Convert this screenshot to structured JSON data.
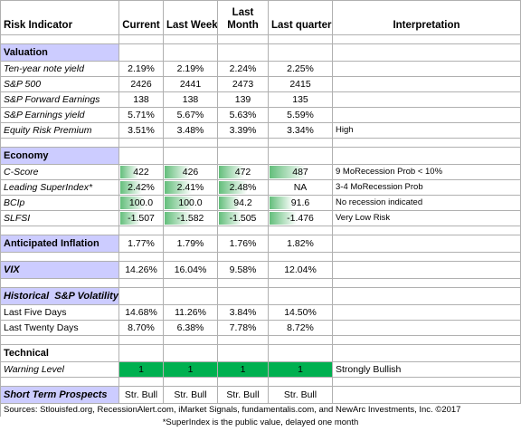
{
  "headers": {
    "indicator": "Risk Indicator",
    "current": "Current",
    "last_week": "Last Week",
    "last_month": "Last Month",
    "last_quarter": "Last quarter",
    "interpretation": "Interpretation"
  },
  "valuation": {
    "title": "Valuation",
    "rows": [
      {
        "label": "Ten-year note yield",
        "current": "2.19%",
        "last_week": "2.19%",
        "last_month": "2.24%",
        "last_quarter": "2.25%",
        "interp": ""
      },
      {
        "label": "S&P 500",
        "current": "2426",
        "last_week": "2441",
        "last_month": "2473",
        "last_quarter": "2415",
        "interp": ""
      },
      {
        "label": "S&P Forward Earnings",
        "current": "138",
        "last_week": "138",
        "last_month": "139",
        "last_quarter": "135",
        "interp": ""
      },
      {
        "label": "S&P Earnings yield",
        "current": "5.71%",
        "last_week": "5.67%",
        "last_month": "5.63%",
        "last_quarter": "5.59%",
        "interp": ""
      },
      {
        "label": "Equity Risk Premium",
        "current": "3.51%",
        "last_week": "3.48%",
        "last_month": "3.39%",
        "last_quarter": "3.34%",
        "interp": "High"
      }
    ]
  },
  "economy": {
    "title": "Economy",
    "rows": [
      {
        "label": "C-Score",
        "current": "422",
        "last_week": "426",
        "last_month": "472",
        "last_quarter": "487",
        "interp": "9 MoRecession Prob < 10%",
        "levels": [
          0.45,
          0.5,
          0.55,
          0.6
        ]
      },
      {
        "label": "Leading SuperIndex*",
        "current": "2.42%",
        "last_week": "2.41%",
        "last_month": "2.48%",
        "last_quarter": "NA",
        "interp": "3-4 MoRecession Prob",
        "levels": [
          0.55,
          0.55,
          0.6,
          0
        ]
      },
      {
        "label": "BCIp",
        "current": "100.0",
        "last_week": "100.0",
        "last_month": "94.2",
        "last_quarter": "91.6",
        "interp": "No recession indicated",
        "levels": [
          0.6,
          0.6,
          0.45,
          0.4
        ]
      },
      {
        "label": "SLFSI",
        "current": "-1.507",
        "last_week": "-1.582",
        "last_month": "-1.505",
        "last_quarter": "-1.476",
        "interp": "Very Low Risk",
        "levels": [
          0.5,
          0.55,
          0.5,
          0.45
        ]
      }
    ]
  },
  "inflation": {
    "label": "Anticipated Inflation",
    "current": "1.77%",
    "last_week": "1.79%",
    "last_month": "1.76%",
    "last_quarter": "1.82%",
    "interp": ""
  },
  "vix": {
    "label": "VIX",
    "current": "14.26%",
    "last_week": "16.04%",
    "last_month": "9.58%",
    "last_quarter": "12.04%",
    "interp": ""
  },
  "volatility": {
    "title": "Historical  S&P Volatility",
    "rows": [
      {
        "label": "Last Five Days",
        "current": "14.68%",
        "last_week": "11.26%",
        "last_month": "3.84%",
        "last_quarter": "14.50%",
        "interp": ""
      },
      {
        "label": "Last Twenty Days",
        "current": "8.70%",
        "last_week": "6.38%",
        "last_month": "7.78%",
        "last_quarter": "8.72%",
        "interp": ""
      }
    ]
  },
  "technical": {
    "title": "Technical",
    "row": {
      "label": "Warning Level",
      "current": "1",
      "last_week": "1",
      "last_month": "1",
      "last_quarter": "1",
      "interp": "Strongly Bullish"
    }
  },
  "prospects": {
    "label": "Short Term Prospects",
    "current": "Str. Bull",
    "last_week": "Str. Bull",
    "last_month": "Str. Bull",
    "last_quarter": "Str. Bull",
    "interp": ""
  },
  "footer": {
    "sources": "Sources: Stlouisfed.org, RecessionAlert.com, iMarket Signals, fundamentalis.com, and NewArc Investments, Inc. ©2017",
    "note": "*SuperIndex is the public value, delayed one month"
  },
  "colors": {
    "section_bg": "#ccccff",
    "signal_green": "#00b050",
    "bar_green": "#63be7b"
  }
}
